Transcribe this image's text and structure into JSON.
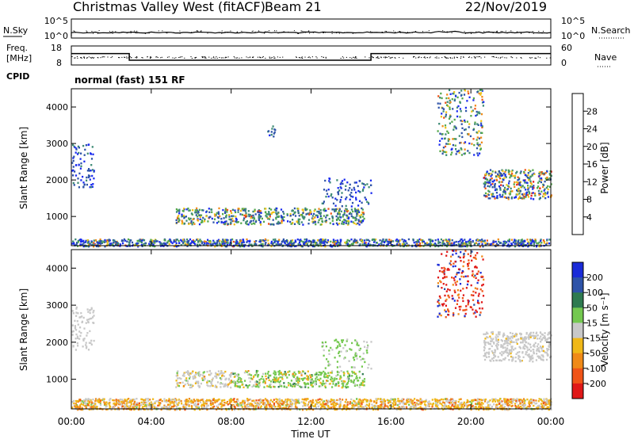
{
  "header": {
    "title": "Christmas Valley West (fitACF)",
    "beam": "Beam 21",
    "date": "22/Nov/2019"
  },
  "sky_panel": {
    "left_label": "N.Sky",
    "left_ticks": [
      "10^5",
      "10^0"
    ],
    "right_label": "N.Search",
    "right_ticks": [
      "10^5",
      "10^0"
    ]
  },
  "freq_panel": {
    "left_label_1": "Freq.",
    "left_label_2": "[MHz]",
    "left_ticks": [
      "18",
      "8"
    ],
    "right_label": "Nave",
    "right_ticks": [
      "60",
      "0"
    ],
    "cpid_label": "CPID",
    "cpid_text": "normal (fast) 151 RF"
  },
  "axes": {
    "x_ticks": [
      "00:00",
      "04:00",
      "08:00",
      "12:00",
      "16:00",
      "20:00",
      "00:00"
    ],
    "x_label": "Time UT",
    "y_label": "Slant Range [km]",
    "y_ticks": [
      "1000",
      "2000",
      "3000",
      "4000"
    ]
  },
  "power_colorbar": {
    "label": "Power [dB]",
    "ticks": [
      "4",
      "8",
      "12",
      "16",
      "20",
      "24",
      "28"
    ],
    "colors": [
      "#1a2bf0",
      "#2e53a8",
      "#3d8a74",
      "#54a84a",
      "#f0c418",
      "#f08a18",
      "#f05418",
      "#e8201e"
    ]
  },
  "velocity_colorbar": {
    "label": "Velocity [m s⁻¹]",
    "ticks": [
      "200",
      "100",
      "50",
      "15",
      "-15",
      "-50",
      "-100",
      "-200"
    ],
    "colors": [
      "#1a2bd8",
      "#2e53a8",
      "#2e7a50",
      "#74c850",
      "#c8c8c8",
      "#f0b818",
      "#f08a18",
      "#f05418",
      "#e01818"
    ]
  },
  "chart_data": {
    "type": "heatmap",
    "x_range_hours": [
      0,
      24
    ],
    "y_range_km": [
      200,
      4500
    ],
    "sky_noise_level": "~10^0.3 flat",
    "frequency_mhz": [
      {
        "start": 0,
        "end": 2.9,
        "value": 14
      },
      {
        "start": 2.9,
        "end": 15.0,
        "value": 10.5
      },
      {
        "start": 15.0,
        "end": 24,
        "value": 14
      }
    ],
    "power_features": [
      {
        "t0": 5.2,
        "t1": 14.7,
        "r0": 800,
        "r1": 1250,
        "level": "12-24 dB"
      },
      {
        "t0": 9.8,
        "t1": 10.2,
        "r0": 3200,
        "r1": 3500,
        "level": "8-12 dB"
      },
      {
        "t0": 18.3,
        "t1": 20.6,
        "r0": 2700,
        "r1": 4500,
        "level": "12-24 dB"
      },
      {
        "t0": 20.6,
        "t1": 24,
        "r0": 1500,
        "r1": 2300,
        "level": "16-28 dB"
      },
      {
        "t0": 0,
        "t1": 24,
        "r0": 200,
        "r1": 400,
        "level": "4-20 dB"
      }
    ],
    "velocity_features": [
      {
        "t0": 5.2,
        "t1": 8.0,
        "r0": 800,
        "r1": 1250,
        "level": "-15..15 / -50"
      },
      {
        "t0": 8.0,
        "t1": 14.7,
        "r0": 800,
        "r1": 1250,
        "level": "15..100"
      },
      {
        "t0": 18.3,
        "t1": 20.6,
        "r0": 2700,
        "r1": 4500,
        "level": "-100..-200, some 100..200"
      },
      {
        "t0": 20.6,
        "t1": 24,
        "r0": 1500,
        "r1": 2300,
        "level": "-15..15"
      },
      {
        "t0": 0,
        "t1": 24,
        "r0": 200,
        "r1": 500,
        "level": "-15..-100"
      }
    ]
  }
}
